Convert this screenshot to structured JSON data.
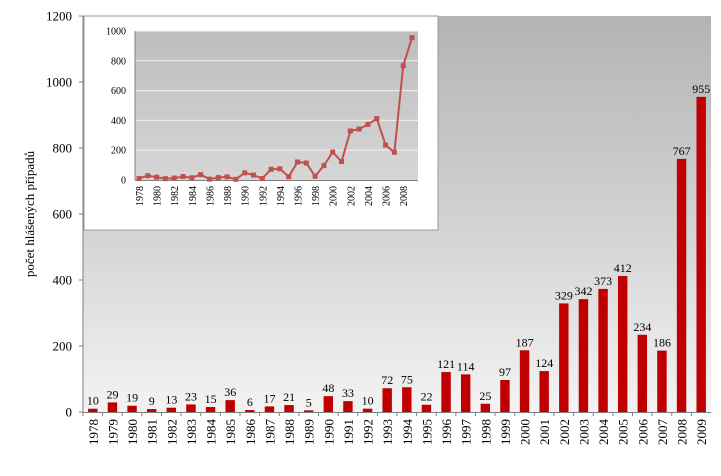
{
  "chart_data": [
    {
      "type": "bar",
      "title": "",
      "xlabel": "",
      "ylabel": "počet hlášených případů",
      "ylim": [
        0,
        1200
      ],
      "yticks": [
        0,
        200,
        400,
        600,
        800,
        1000,
        1200
      ],
      "grid": false,
      "data_labels": true,
      "categories": [
        "1978",
        "1979",
        "1980",
        "1981",
        "1982",
        "1983",
        "1984",
        "1985",
        "1986",
        "1987",
        "1988",
        "1989",
        "1990",
        "1991",
        "1992",
        "1993",
        "1994",
        "1995",
        "1996",
        "1997",
        "1998",
        "1999",
        "2000",
        "2001",
        "2002",
        "2003",
        "2004",
        "2005",
        "2006",
        "2007",
        "2008",
        "2009"
      ],
      "values": [
        10,
        29,
        19,
        9,
        13,
        23,
        15,
        36,
        6,
        17,
        21,
        5,
        48,
        33,
        10,
        72,
        75,
        22,
        121,
        114,
        25,
        97,
        187,
        124,
        329,
        342,
        373,
        412,
        234,
        186,
        767,
        955
      ],
      "colors": {
        "bar": "#C00000",
        "plot_bg_top": "#B5B5B5",
        "plot_bg_bottom": "#F2F2F2"
      }
    },
    {
      "type": "line",
      "title": "",
      "inset": true,
      "ylim": [
        0,
        1000
      ],
      "yticks": [
        0,
        200,
        400,
        600,
        800,
        1000
      ],
      "xticks": [
        "1978",
        "1980",
        "1982",
        "1984",
        "1986",
        "1988",
        "1990",
        "1992",
        "1994",
        "1996",
        "1998",
        "2000",
        "2002",
        "2004",
        "2006",
        "2008"
      ],
      "grid": true,
      "x": [
        1978,
        1979,
        1980,
        1981,
        1982,
        1983,
        1984,
        1985,
        1986,
        1987,
        1988,
        1989,
        1990,
        1991,
        1992,
        1993,
        1994,
        1995,
        1996,
        1997,
        1998,
        1999,
        2000,
        2001,
        2002,
        2003,
        2004,
        2005,
        2006,
        2007,
        2008,
        2009
      ],
      "values": [
        10,
        29,
        19,
        9,
        13,
        23,
        15,
        36,
        6,
        17,
        21,
        5,
        48,
        33,
        10,
        72,
        75,
        22,
        121,
        114,
        25,
        97,
        187,
        124,
        329,
        342,
        373,
        412,
        234,
        186,
        767,
        955
      ],
      "colors": {
        "line": "#C0504D",
        "plot_bg": "#C8C8C8",
        "grid": "#F2F2F2"
      }
    }
  ]
}
